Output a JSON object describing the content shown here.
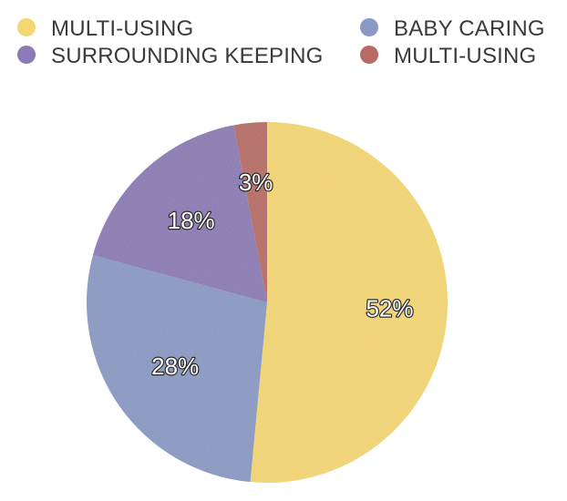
{
  "chart_data": {
    "type": "pie",
    "title": "",
    "categories": [
      "MULTI-USING",
      "BABY CARING",
      "SURROUNDING KEEPING",
      "MULTI-USING"
    ],
    "values": [
      52,
      28,
      18,
      3
    ],
    "labels": [
      "52%",
      "28%",
      "18%",
      "3%"
    ],
    "colors": [
      "#f5d772",
      "#8a9ac4",
      "#8b7ab5",
      "#b86a64"
    ],
    "legend": {
      "placement": "top",
      "entries": [
        {
          "label": "MULTI-USING",
          "color": "#f5d772"
        },
        {
          "label": "BABY CARING",
          "color": "#8a9ac4"
        },
        {
          "label": "SURROUNDING KEEPING",
          "color": "#8b7ab5"
        },
        {
          "label": "MULTI-USING",
          "color": "#b86a64"
        }
      ]
    },
    "start_angle": "top",
    "direction": "clockwise"
  }
}
